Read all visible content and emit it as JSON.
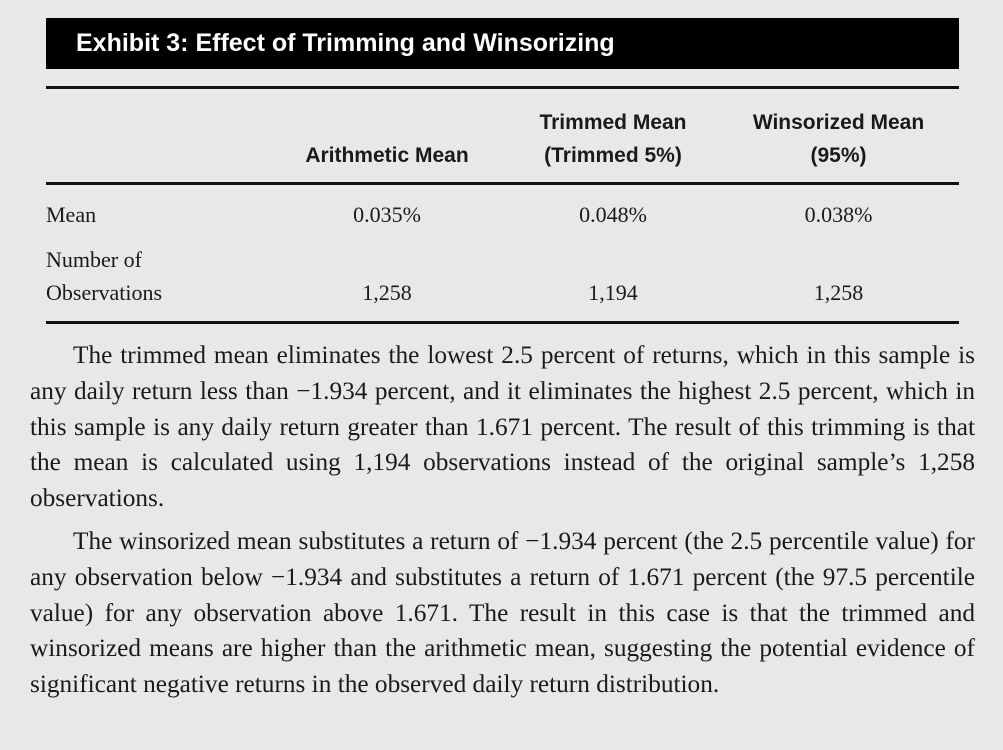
{
  "exhibit": {
    "title": "Exhibit 3: Effect of Trimming and Winsorizing"
  },
  "table": {
    "headers": {
      "arithmetic": [
        "Arithmetic Mean"
      ],
      "trimmed": [
        "Trimmed Mean",
        "(Trimmed 5%)"
      ],
      "winsorized": [
        "Winsorized Mean",
        "(95%)"
      ]
    },
    "rows": [
      {
        "label": [
          "Mean"
        ],
        "arithmetic": "0.035%",
        "trimmed": "0.048%",
        "winsorized": "0.038%"
      },
      {
        "label": [
          "Number of",
          "Observations"
        ],
        "arithmetic": "1,258",
        "trimmed": "1,194",
        "winsorized": "1,258"
      }
    ]
  },
  "paragraphs": [
    "The trimmed mean eliminates the lowest 2.5 percent of returns, which in this sample is any daily return less than −1.934 percent, and it eliminates the highest 2.5 percent, which in this sample is any daily return greater than 1.671 percent. The result of this trimming is that the mean is calculated using 1,194 observations instead of the original sample’s 1,258 observations.",
    "The winsorized mean substitutes a return of −1.934 percent (the 2.5 percentile value) for any observation below −1.934 and substitutes a return of 1.671 percent (the 97.5 percentile value) for any observation above 1.671. The result in this case is that the trimmed and winsorized means are higher than the arithmetic mean, suggesting the potential evidence of significant negative returns in the observed daily return distribution."
  ]
}
